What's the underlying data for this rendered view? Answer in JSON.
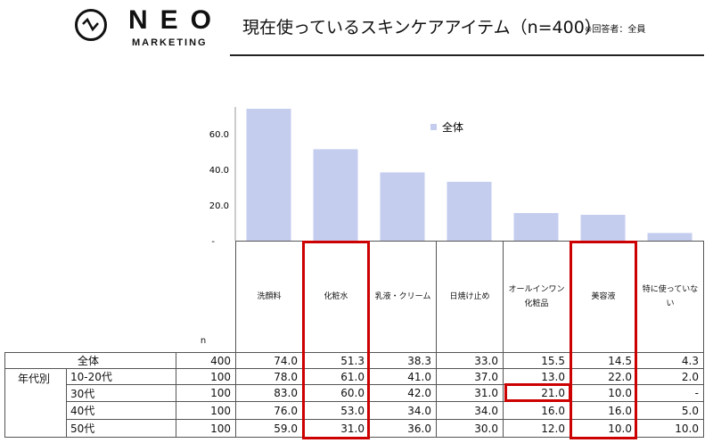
{
  "logo": {
    "name": "NEO",
    "sub": "MARKETING"
  },
  "header": {
    "title": "現在使っているスキンケアアイテム（n=400）",
    "note": "※回答者：全員"
  },
  "chart_data": {
    "type": "bar",
    "categories": [
      "洗顔料",
      "化粧水",
      "乳液・クリーム",
      "日焼け止め",
      "オールインワン化粧品",
      "美容液",
      "特に使っていない"
    ],
    "series": [
      {
        "name": "全体",
        "values": [
          74.0,
          51.3,
          38.3,
          33.0,
          15.5,
          14.5,
          4.3
        ]
      }
    ],
    "yticks": [
      "-",
      "20.0",
      "40.0",
      "60.0"
    ],
    "ylim": [
      0,
      74
    ],
    "legend": "top-center",
    "color": "#c5cdef"
  },
  "table": {
    "n_label": "n",
    "group_label": "年代別",
    "headers": [
      "洗顔料",
      "化粧水",
      "乳液・クリーム",
      "日焼け止め",
      "オールインワン化粧品",
      "美容液",
      "特に使っていない"
    ],
    "rows": [
      {
        "label": "全体",
        "n": "400",
        "values": [
          "74.0",
          "51.3",
          "38.3",
          "33.0",
          "15.5",
          "14.5",
          "4.3"
        ]
      },
      {
        "label": "10-20代",
        "n": "100",
        "values": [
          "78.0",
          "61.0",
          "41.0",
          "37.0",
          "13.0",
          "22.0",
          "2.0"
        ]
      },
      {
        "label": "30代",
        "n": "100",
        "values": [
          "83.0",
          "60.0",
          "42.0",
          "31.0",
          "21.0",
          "10.0",
          "-"
        ]
      },
      {
        "label": "40代",
        "n": "100",
        "values": [
          "76.0",
          "53.0",
          "34.0",
          "34.0",
          "16.0",
          "16.0",
          "5.0"
        ]
      },
      {
        "label": "50代",
        "n": "100",
        "values": [
          "59.0",
          "31.0",
          "36.0",
          "30.0",
          "12.0",
          "10.0",
          "10.0"
        ]
      }
    ],
    "highlight_color": "#cc0000"
  }
}
